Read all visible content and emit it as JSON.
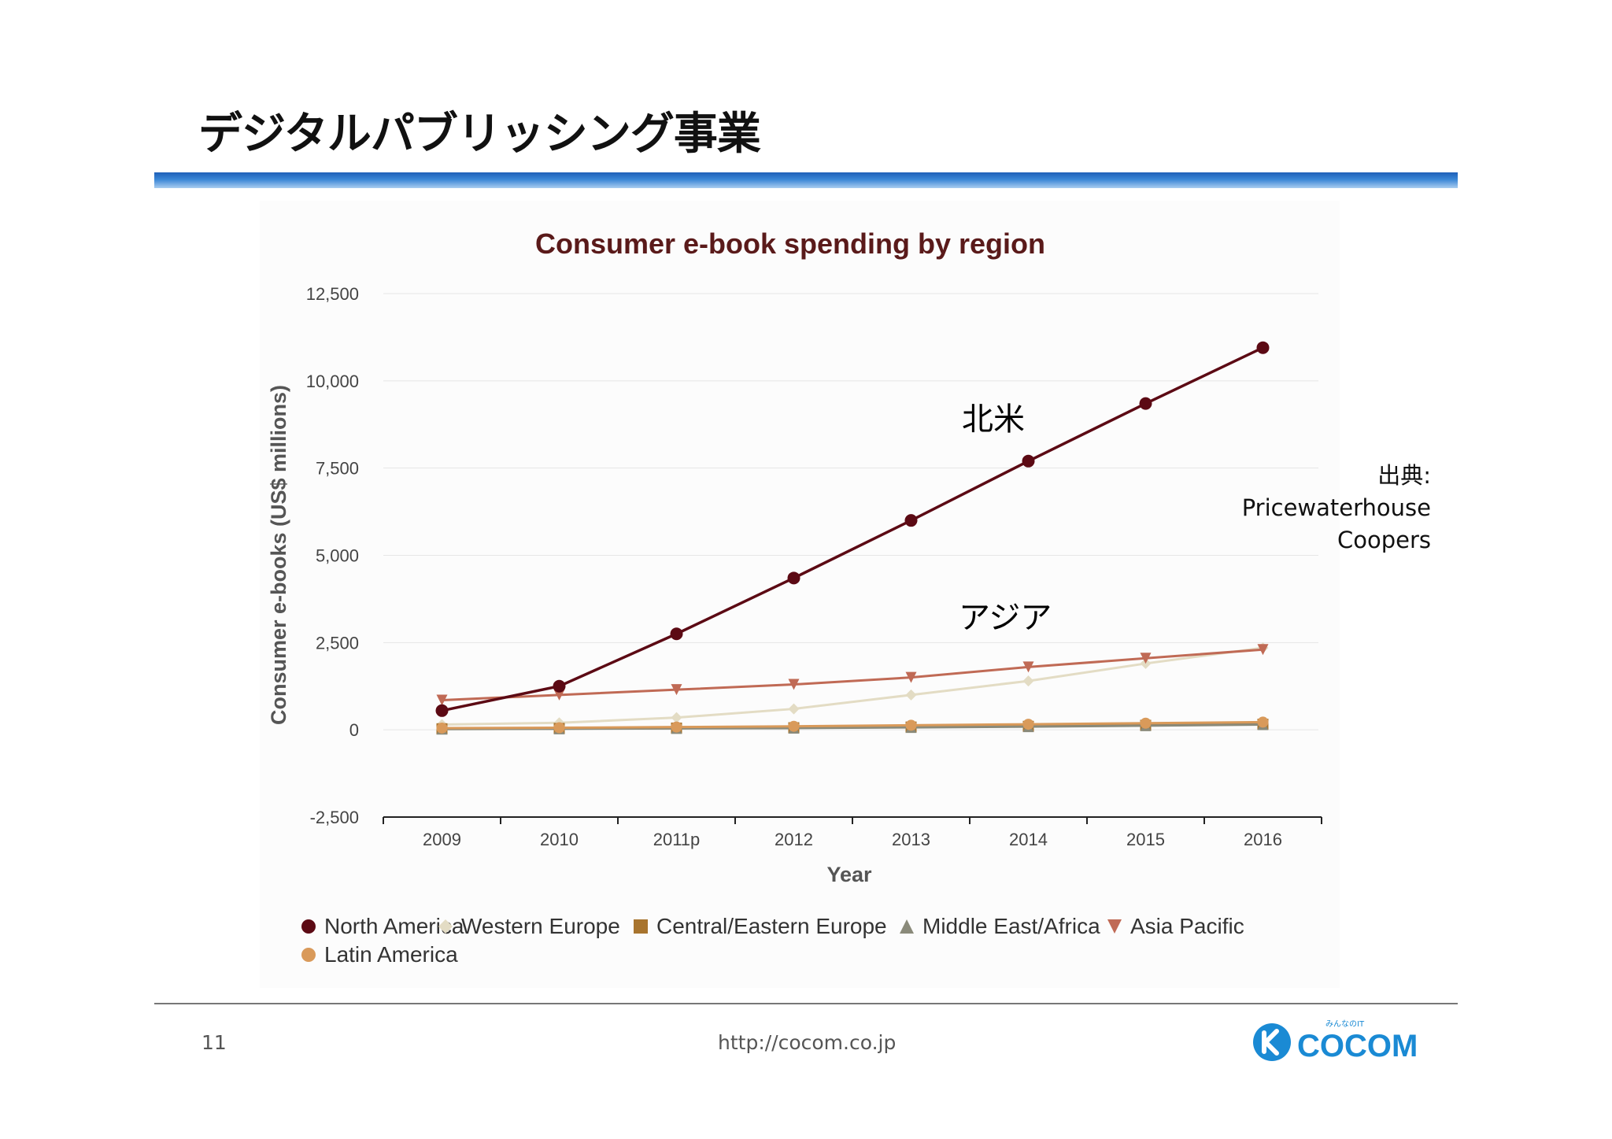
{
  "slide": {
    "title": "デジタルパブリッシング事業",
    "page_number": "11",
    "url": "http://cocom.co.jp",
    "source_label": "出典:",
    "source_line1": "Pricewaterhouse",
    "source_line2": "Coopers",
    "annotation_north_america": "北米",
    "annotation_asia": "アジア",
    "logo": {
      "text": "COCOM",
      "tagline": "みんなのIT",
      "brand_color": "#1a8ad4"
    }
  },
  "chart_data": {
    "type": "line",
    "title": "Consumer e-book spending by region",
    "xlabel": "Year",
    "ylabel": "Consumer e-books (US$ millions)",
    "categories": [
      "2009",
      "2010",
      "2011p",
      "2012",
      "2013",
      "2014",
      "2015",
      "2016"
    ],
    "ylim": [
      -2500,
      12500
    ],
    "yticks": [
      -2500,
      0,
      2500,
      5000,
      7500,
      10000,
      12500
    ],
    "ytick_labels": [
      "-2,500",
      "0",
      "2,500",
      "5,000",
      "7,500",
      "10,000",
      "12,500"
    ],
    "grid": true,
    "legend_position": "bottom",
    "series": [
      {
        "name": "North America",
        "marker": "circle",
        "color": "#5c0a14",
        "values": [
          550,
          1250,
          2750,
          4350,
          6000,
          7700,
          9350,
          10950
        ]
      },
      {
        "name": "Western Europe",
        "marker": "diamond",
        "color": "#e3dcc4",
        "values": [
          150,
          200,
          350,
          600,
          1000,
          1400,
          1900,
          2350
        ]
      },
      {
        "name": "Central/Eastern Europe",
        "marker": "square",
        "color": "#a8742e",
        "values": [
          30,
          40,
          50,
          60,
          80,
          100,
          130,
          160
        ]
      },
      {
        "name": "Middle East/Africa",
        "marker": "triangle",
        "color": "#8a8a7a",
        "values": [
          20,
          30,
          40,
          50,
          70,
          90,
          120,
          150
        ]
      },
      {
        "name": "Asia Pacific",
        "marker": "triangle-down",
        "color": "#c06a55",
        "values": [
          850,
          1000,
          1150,
          1300,
          1500,
          1800,
          2050,
          2300
        ]
      },
      {
        "name": "Latin America",
        "marker": "circle",
        "color": "#d99a5a",
        "values": [
          50,
          60,
          80,
          100,
          130,
          160,
          190,
          220
        ]
      }
    ]
  }
}
